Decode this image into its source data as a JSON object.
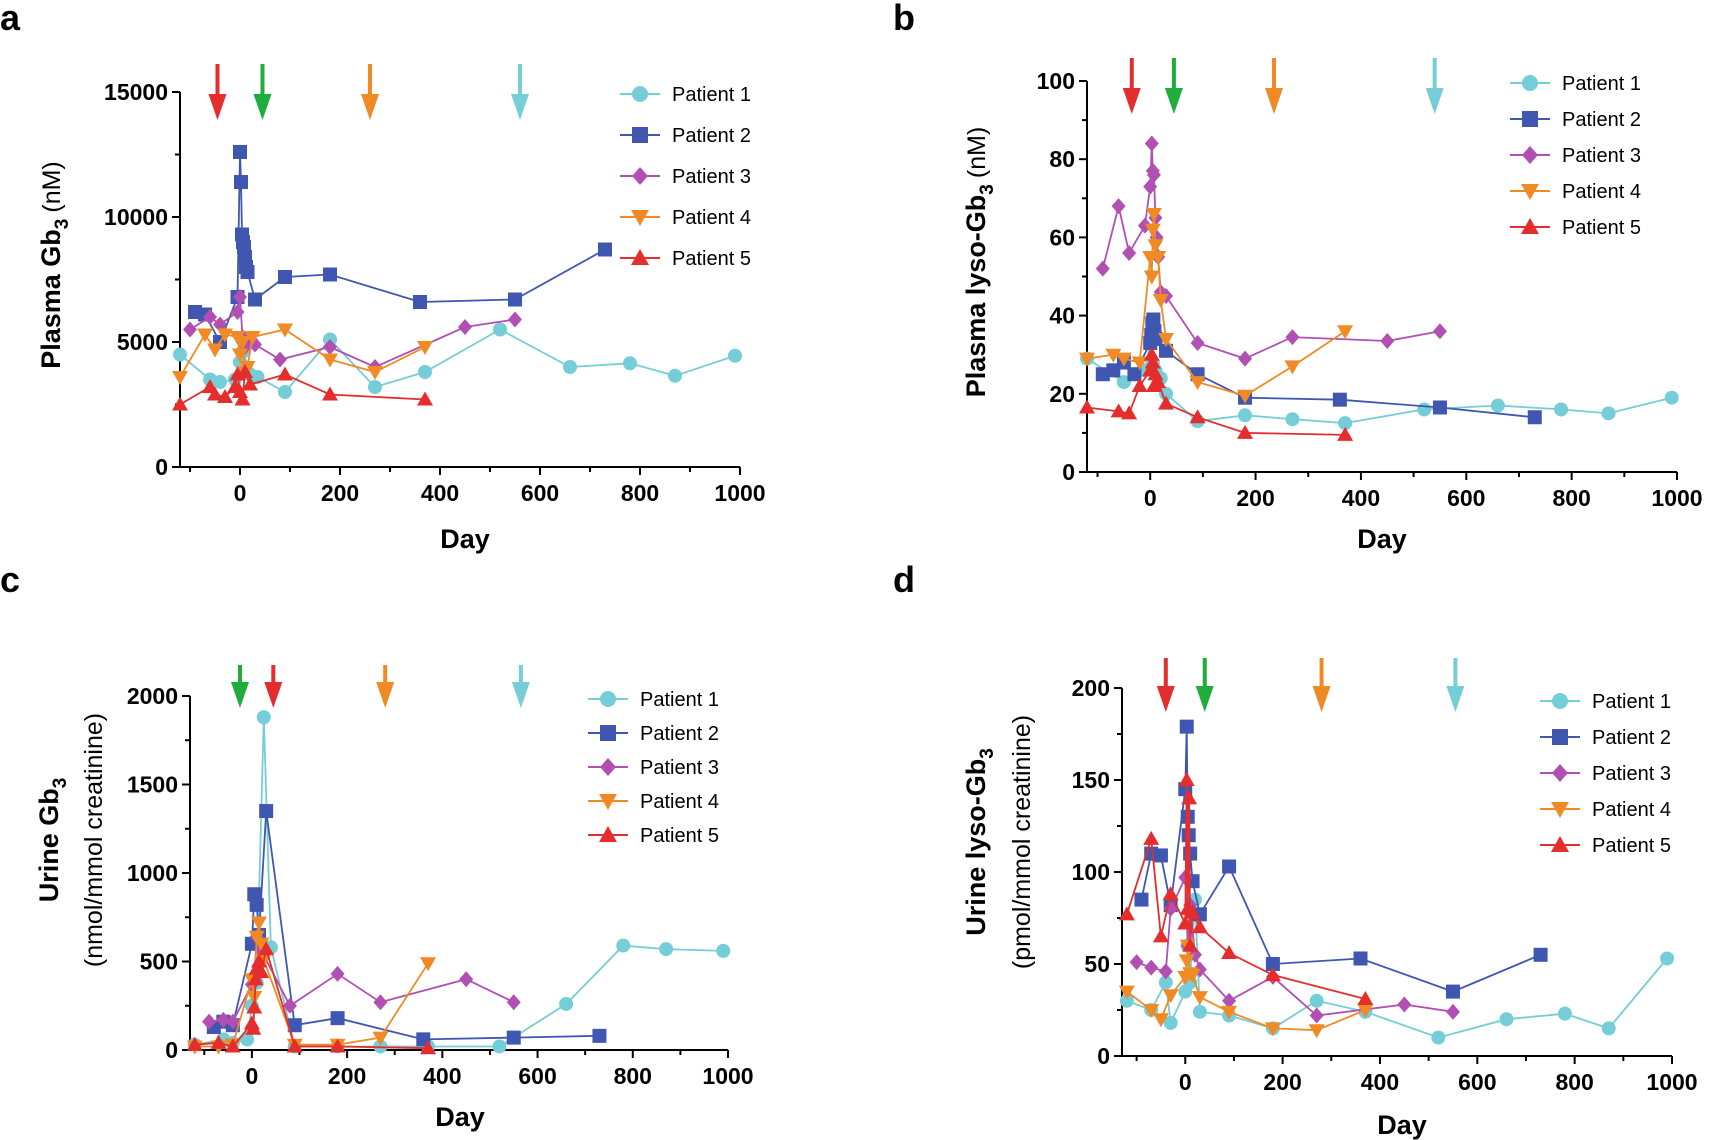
{
  "colors": {
    "patient1": "#75cdd7",
    "patient2": "#3f57b0",
    "patient3": "#b14fb3",
    "patient4": "#f08a25",
    "patient5": "#e42d2d",
    "arrow_red": "#e42d2d",
    "arrow_green": "#1fae3c",
    "arrow_orange": "#f08a25",
    "arrow_cyan": "#75cdd7"
  },
  "chart_data": [
    {
      "type": "line",
      "panel": "a",
      "ylabel_main": "Plasma Gb",
      "ylabel_sub": "3",
      "ylabel_unit": "(nM)",
      "xlabel": "Day",
      "xlim": [
        -120,
        1000
      ],
      "ylim": [
        0,
        15000
      ],
      "xticks": [
        0,
        200,
        400,
        600,
        800,
        1000
      ],
      "yticks": [
        0,
        5000,
        10000,
        15000
      ],
      "legend_position": "top-right",
      "arrows": [
        {
          "x": -45,
          "color": "arrow_red"
        },
        {
          "x": 45,
          "color": "arrow_green"
        },
        {
          "x": 260,
          "color": "arrow_orange"
        },
        {
          "x": 560,
          "color": "arrow_cyan"
        }
      ],
      "series": [
        {
          "name": "Patient 1",
          "marker": "circle",
          "color": "patient1",
          "x": [
            -120,
            -60,
            -40,
            -10,
            0,
            5,
            10,
            20,
            35,
            90,
            180,
            270,
            370,
            520,
            660,
            780,
            870,
            990
          ],
          "y": [
            4500,
            3500,
            3400,
            3500,
            4200,
            4600,
            4000,
            3700,
            3600,
            3000,
            5100,
            3200,
            3800,
            5500,
            4000,
            4150,
            3650,
            4450
          ]
        },
        {
          "name": "Patient 2",
          "marker": "square",
          "color": "patient2",
          "x": [
            -90,
            -70,
            -40,
            -5,
            0,
            2,
            4,
            6,
            8,
            10,
            12,
            15,
            30,
            90,
            180,
            360,
            550,
            730
          ],
          "y": [
            6200,
            6100,
            5000,
            6800,
            12600,
            11400,
            9300,
            9000,
            8800,
            8400,
            8000,
            7800,
            6700,
            7600,
            7700,
            6600,
            6700,
            8700
          ]
        },
        {
          "name": "Patient 3",
          "marker": "diamond",
          "color": "patient3",
          "x": [
            -100,
            -60,
            -40,
            -5,
            0,
            5,
            10,
            20,
            30,
            80,
            180,
            270,
            450,
            550
          ],
          "y": [
            5500,
            6000,
            5700,
            6200,
            6800,
            5200,
            4800,
            5100,
            4900,
            4300,
            4800,
            4000,
            5600,
            5900
          ]
        },
        {
          "name": "Patient 4",
          "marker": "triangle-down",
          "color": "patient4",
          "x": [
            -120,
            -70,
            -50,
            -30,
            -5,
            0,
            5,
            10,
            15,
            25,
            90,
            180,
            270,
            370
          ],
          "y": [
            3600,
            5300,
            4700,
            5300,
            5200,
            4500,
            5000,
            3800,
            4000,
            5200,
            5500,
            4300,
            3800,
            4800
          ]
        },
        {
          "name": "Patient 5",
          "marker": "triangle-up",
          "color": "patient5",
          "x": [
            -120,
            -60,
            -50,
            -30,
            -10,
            -5,
            0,
            5,
            10,
            20,
            90,
            180,
            370
          ],
          "y": [
            2500,
            3200,
            2900,
            2800,
            3200,
            3700,
            3000,
            2700,
            3800,
            3300,
            3700,
            2900,
            2700
          ]
        }
      ]
    },
    {
      "type": "line",
      "panel": "b",
      "ylabel_main": "Plasma lyso-Gb",
      "ylabel_sub": "3",
      "ylabel_unit": "(nM)",
      "xlabel": "Day",
      "xlim": [
        -120,
        1000
      ],
      "ylim": [
        0,
        100
      ],
      "xticks": [
        0,
        200,
        400,
        600,
        800,
        1000
      ],
      "yticks": [
        0,
        20,
        40,
        60,
        80,
        100
      ],
      "legend_position": "top-right",
      "arrows": [
        {
          "x": -35,
          "color": "arrow_red"
        },
        {
          "x": 45,
          "color": "arrow_green"
        },
        {
          "x": 235,
          "color": "arrow_orange"
        },
        {
          "x": 540,
          "color": "arrow_cyan"
        }
      ],
      "series": [
        {
          "name": "Patient 1",
          "marker": "circle",
          "color": "patient1",
          "x": [
            -120,
            -50,
            -30,
            -10,
            0,
            5,
            10,
            20,
            30,
            90,
            180,
            270,
            370,
            520,
            660,
            780,
            870,
            990
          ],
          "y": [
            29,
            23,
            25,
            26,
            33,
            28,
            26,
            24,
            20,
            13,
            14.5,
            13.5,
            12.5,
            16,
            17,
            16,
            15,
            19
          ]
        },
        {
          "name": "Patient 2",
          "marker": "square",
          "color": "patient2",
          "x": [
            -90,
            -70,
            -50,
            -30,
            0,
            2,
            4,
            6,
            8,
            10,
            30,
            90,
            180,
            360,
            550,
            730
          ],
          "y": [
            25,
            26,
            28,
            25,
            33,
            35,
            38,
            39,
            36,
            34,
            31,
            25,
            19,
            18.5,
            16.5,
            14
          ]
        },
        {
          "name": "Patient 3",
          "marker": "diamond",
          "color": "patient3",
          "x": [
            -90,
            -60,
            -40,
            -10,
            0,
            3,
            5,
            7,
            10,
            12,
            15,
            20,
            30,
            90,
            180,
            270,
            450,
            550
          ],
          "y": [
            52,
            68,
            56,
            63,
            73,
            84,
            77,
            76,
            65,
            60,
            55,
            46,
            45,
            33,
            29,
            34.5,
            33.5,
            36
          ]
        },
        {
          "name": "Patient 4",
          "marker": "triangle-down",
          "color": "patient4",
          "x": [
            -120,
            -70,
            -50,
            -20,
            0,
            3,
            5,
            7,
            10,
            15,
            20,
            30,
            90,
            180,
            270,
            370
          ],
          "y": [
            29,
            30,
            29,
            28,
            55,
            50,
            62,
            66,
            58,
            55,
            44,
            34,
            23,
            19.5,
            27,
            36
          ]
        },
        {
          "name": "Patient 5",
          "marker": "triangle-up",
          "color": "patient5",
          "x": [
            -120,
            -60,
            -40,
            -20,
            0,
            3,
            5,
            7,
            10,
            15,
            30,
            90,
            180,
            370
          ],
          "y": [
            16.5,
            15.5,
            15,
            22,
            26,
            30,
            28,
            22,
            25,
            23,
            17.5,
            14,
            10,
            9.5
          ]
        }
      ]
    },
    {
      "type": "line",
      "panel": "c",
      "ylabel_main": "Urine Gb",
      "ylabel_sub": "3",
      "ylabel_unit": "(nmol/mmol creatinine)",
      "xlabel": "Day",
      "xlim": [
        -130,
        1000
      ],
      "ylim": [
        0,
        2000
      ],
      "xticks": [
        0,
        200,
        400,
        600,
        800,
        1000
      ],
      "yticks": [
        0,
        500,
        1000,
        1500,
        2000
      ],
      "legend_position": "top-right",
      "arrows": [
        {
          "x": -25,
          "color": "arrow_green"
        },
        {
          "x": 45,
          "color": "arrow_red"
        },
        {
          "x": 280,
          "color": "arrow_orange"
        },
        {
          "x": 565,
          "color": "arrow_cyan"
        }
      ],
      "series": [
        {
          "name": "Patient 1",
          "marker": "circle",
          "color": "patient1",
          "x": [
            -120,
            -60,
            -40,
            -10,
            0,
            10,
            25,
            40,
            90,
            180,
            270,
            370,
            520,
            660,
            780,
            870,
            990
          ],
          "y": [
            30,
            60,
            40,
            60,
            250,
            380,
            1880,
            580,
            20,
            20,
            20,
            20,
            20,
            260,
            590,
            570,
            560
          ]
        },
        {
          "name": "Patient 2",
          "marker": "square",
          "color": "patient2",
          "x": [
            -80,
            -60,
            -40,
            0,
            5,
            10,
            15,
            30,
            90,
            180,
            360,
            550,
            730
          ],
          "y": [
            130,
            160,
            140,
            600,
            880,
            820,
            650,
            1350,
            140,
            180,
            60,
            70,
            80
          ]
        },
        {
          "name": "Patient 3",
          "marker": "diamond",
          "color": "patient3",
          "x": [
            -90,
            -60,
            -40,
            0,
            5,
            10,
            20,
            80,
            180,
            270,
            450,
            550
          ],
          "y": [
            160,
            170,
            160,
            370,
            400,
            640,
            560,
            250,
            430,
            270,
            400,
            270
          ]
        },
        {
          "name": "Patient 4",
          "marker": "triangle-down",
          "color": "patient4",
          "x": [
            -120,
            -70,
            -40,
            0,
            5,
            10,
            15,
            20,
            25,
            90,
            180,
            270,
            370
          ],
          "y": [
            20,
            20,
            30,
            400,
            300,
            640,
            720,
            600,
            510,
            30,
            30,
            70,
            490
          ]
        },
        {
          "name": "Patient 5",
          "marker": "triangle-up",
          "color": "patient5",
          "x": [
            -120,
            -70,
            -40,
            0,
            3,
            5,
            8,
            10,
            15,
            20,
            30,
            90,
            180,
            370
          ],
          "y": [
            30,
            40,
            20,
            150,
            120,
            240,
            400,
            460,
            500,
            440,
            570,
            20,
            20,
            10
          ]
        }
      ]
    },
    {
      "type": "line",
      "panel": "d",
      "ylabel_main": "Urine lyso-Gb",
      "ylabel_sub": "3",
      "ylabel_unit": "(pmol/mmol creatinine)",
      "xlabel": "Day",
      "xlim": [
        -130,
        1000
      ],
      "ylim": [
        0,
        200
      ],
      "xticks": [
        0,
        200,
        400,
        600,
        800,
        1000
      ],
      "yticks": [
        0,
        50,
        100,
        150,
        200
      ],
      "legend_position": "top-right",
      "arrows": [
        {
          "x": -40,
          "color": "arrow_red"
        },
        {
          "x": 40,
          "color": "arrow_green"
        },
        {
          "x": 280,
          "color": "arrow_orange"
        },
        {
          "x": 555,
          "color": "arrow_cyan"
        }
      ],
      "series": [
        {
          "name": "Patient 1",
          "marker": "circle",
          "color": "patient1",
          "x": [
            -120,
            -70,
            -40,
            -30,
            0,
            5,
            10,
            20,
            30,
            90,
            180,
            270,
            370,
            520,
            660,
            780,
            870,
            990
          ],
          "y": [
            30,
            25,
            40,
            18,
            35,
            60,
            40,
            85,
            24,
            22,
            15,
            30,
            24,
            10,
            20,
            23,
            15,
            53
          ]
        },
        {
          "name": "Patient 2",
          "marker": "square",
          "color": "patient2",
          "x": [
            -90,
            -70,
            -50,
            -30,
            0,
            3,
            5,
            7,
            10,
            15,
            30,
            90,
            180,
            360,
            550,
            730
          ],
          "y": [
            85,
            110,
            109,
            82,
            145,
            179,
            130,
            120,
            110,
            95,
            77,
            103,
            50,
            53,
            35,
            55
          ]
        },
        {
          "name": "Patient 3",
          "marker": "diamond",
          "color": "patient3",
          "x": [
            -100,
            -70,
            -40,
            -30,
            0,
            5,
            10,
            20,
            30,
            90,
            180,
            270,
            450,
            550
          ],
          "y": [
            51,
            48,
            46,
            80,
            97,
            60,
            82,
            55,
            47,
            30,
            43,
            22,
            28,
            24
          ]
        },
        {
          "name": "Patient 4",
          "marker": "triangle-down",
          "color": "patient4",
          "x": [
            -120,
            -70,
            -50,
            -30,
            0,
            3,
            5,
            10,
            15,
            30,
            90,
            180,
            270,
            370
          ],
          "y": [
            35,
            25,
            20,
            33,
            43,
            52,
            60,
            45,
            44,
            32,
            24,
            15,
            14,
            25
          ]
        },
        {
          "name": "Patient 5",
          "marker": "triangle-up",
          "color": "patient5",
          "x": [
            -120,
            -70,
            -50,
            -30,
            0,
            3,
            5,
            8,
            10,
            15,
            30,
            90,
            180,
            370
          ],
          "y": [
            77,
            118,
            65,
            88,
            72,
            150,
            80,
            140,
            60,
            78,
            70,
            56,
            44,
            31
          ]
        }
      ]
    }
  ]
}
